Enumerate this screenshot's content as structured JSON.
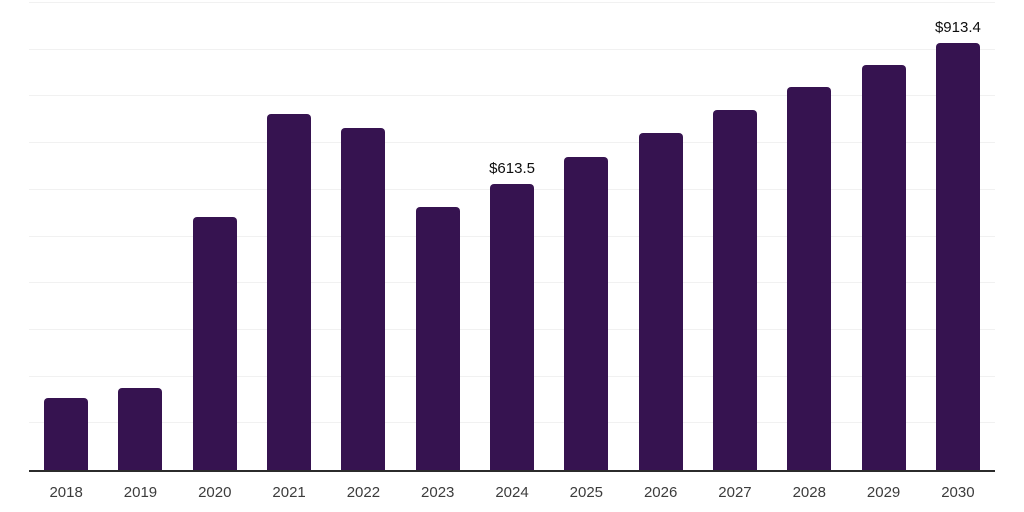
{
  "chart_data": {
    "type": "bar",
    "title": "",
    "xlabel": "",
    "ylabel": "",
    "categories": [
      "2018",
      "2019",
      "2020",
      "2021",
      "2022",
      "2023",
      "2024",
      "2025",
      "2026",
      "2027",
      "2028",
      "2029",
      "2030"
    ],
    "values": [
      154,
      175,
      541,
      763,
      733,
      563,
      613.5,
      670,
      721,
      770,
      820,
      867,
      913.4
    ],
    "data_labels": [
      null,
      null,
      null,
      null,
      null,
      null,
      "$613.5",
      null,
      null,
      null,
      null,
      null,
      "$913.4"
    ],
    "ylim": [
      0,
      1000
    ],
    "gridline_step": 100,
    "grid": true,
    "legend_position": "none",
    "bar_color": "#361350",
    "gridline_color": "#f1f1f1",
    "axis_line_color": "#2b2b2b",
    "tick_label_color": "#3c3c3c",
    "data_label_color": "#0d0d0d"
  }
}
